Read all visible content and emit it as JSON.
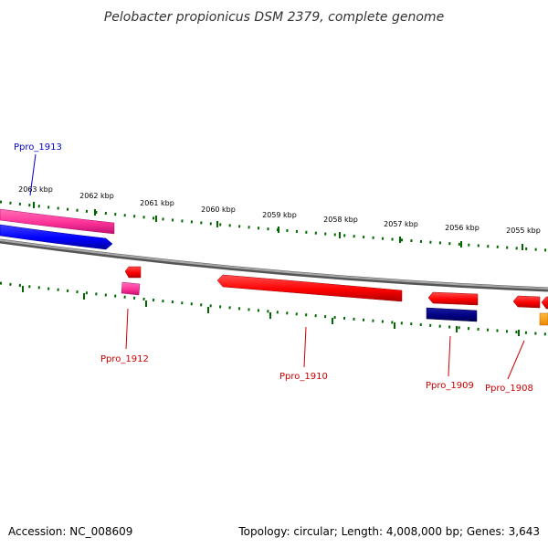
{
  "title": "Pelobacter propionicus DSM 2379, complete genome",
  "footer": {
    "accession": "Accession: NC_008609",
    "summary": "Topology: circular; Length: 4,008,000 bp; Genes: 3,643"
  },
  "ticks": [
    {
      "label": "2063 kbp"
    },
    {
      "label": "2062 kbp"
    },
    {
      "label": "2061 kbp"
    },
    {
      "label": "2060 kbp"
    },
    {
      "label": "2059 kbp"
    },
    {
      "label": "2058 kbp"
    },
    {
      "label": "2057 kbp"
    },
    {
      "label": "2056 kbp"
    },
    {
      "label": "2055 kbp"
    }
  ],
  "genes": [
    {
      "label": "Ppro_1913",
      "color": "#0000cc"
    },
    {
      "label": "Ppro_1912",
      "color": "#cc0000"
    },
    {
      "label": "Ppro_1910",
      "color": "#cc0000"
    },
    {
      "label": "Ppro_1909",
      "color": "#cc0000"
    },
    {
      "label": "Ppro_1908",
      "color": "#cc0000"
    }
  ],
  "colors": {
    "cds_forward": "#ff0000",
    "cds_pink": "#ff3399",
    "cds_blue": "#0000ff",
    "cds_navy": "#000080",
    "cds_orange": "#ff9900",
    "backbone": "#888888",
    "tick": "#006600"
  }
}
